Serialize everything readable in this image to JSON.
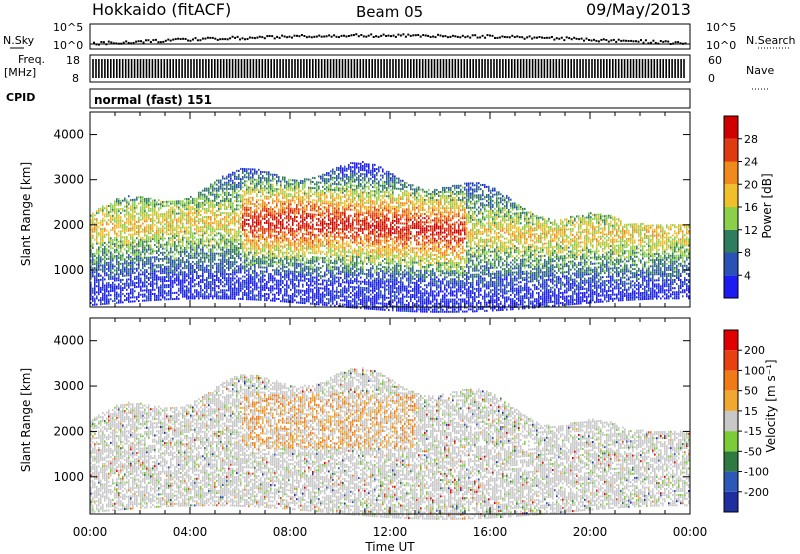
{
  "header": {
    "station": "Hokkaido (fitACF)",
    "beam": "Beam 05",
    "date": "09/May/2013"
  },
  "top_panels": {
    "nsky_label": "N.Sky",
    "nsearch_label": "N.Search",
    "noise_tick_high": "10^5",
    "noise_tick_low": "10^0",
    "freq_label": "Freq.",
    "freq_unit": "[MHz]",
    "freq_ticks": [
      "18",
      "8"
    ],
    "nave_label": "Nave",
    "nave_ticks": [
      "60",
      "0"
    ],
    "cpid_label": "CPID",
    "cpid_value": "normal (fast) 151"
  },
  "chart_data": [
    {
      "type": "heatmap",
      "name": "power",
      "ylabel": "Slant Range [km]",
      "xlabel": "",
      "x_ticks": [
        "00:00",
        "04:00",
        "08:00",
        "12:00",
        "16:00",
        "20:00",
        "00:00"
      ],
      "y_ticks": [
        1000,
        2000,
        3000,
        4000
      ],
      "ylim": [
        180,
        4500
      ],
      "xlim_hours": [
        0,
        24
      ],
      "colorbar": {
        "label": "Power [dB]",
        "ticks": [
          4,
          8,
          12,
          16,
          20,
          24,
          28
        ],
        "range": [
          0,
          32
        ],
        "colors": [
          "#1c1cf0",
          "#2a52b4",
          "#2f7d5e",
          "#8ccf4a",
          "#f0c02c",
          "#f08a1c",
          "#e03a10",
          "#d00000"
        ]
      }
    },
    {
      "type": "heatmap",
      "name": "velocity",
      "ylabel": "Slant Range [km]",
      "xlabel": "Time UT",
      "x_ticks": [
        "00:00",
        "04:00",
        "08:00",
        "12:00",
        "16:00",
        "20:00",
        "00:00"
      ],
      "y_ticks": [
        1000,
        2000,
        3000,
        4000
      ],
      "ylim": [
        180,
        4500
      ],
      "xlim_hours": [
        0,
        24
      ],
      "colorbar": {
        "label": "Velocity [m s⁻¹]",
        "ticks": [
          "200",
          "100",
          "50",
          "15",
          "-15",
          "-50",
          "-100",
          "-200"
        ],
        "colors": [
          "#1f2fa0",
          "#2e58b8",
          "#2f7a40",
          "#7ccc3a",
          "#c8c8c8",
          "#f0a830",
          "#f07a18",
          "#e84010",
          "#e00000"
        ]
      }
    }
  ]
}
